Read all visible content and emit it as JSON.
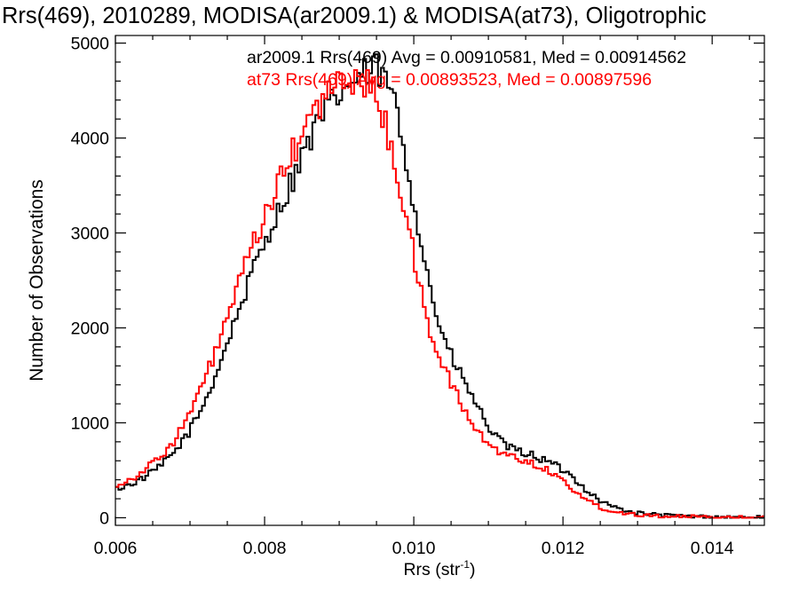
{
  "chart_data": {
    "type": "line",
    "title": "Rrs(469), 2010289, MODISA(ar2009.1) & MODISA(at73), Oligotrophic",
    "xlabel_main": "Rrs (str",
    "xlabel_sup": "-1",
    "xlabel_close": ")",
    "ylabel": "Number of Observations",
    "xlim": [
      0.006,
      0.0147
    ],
    "ylim": [
      -80,
      5080
    ],
    "xticks": [
      0.006,
      0.008,
      0.01,
      0.012,
      0.014
    ],
    "xtick_labels": [
      "0.006",
      "0.008",
      "0.010",
      "0.012",
      "0.014"
    ],
    "yticks": [
      0,
      1000,
      2000,
      3000,
      4000,
      5000
    ],
    "ytick_labels": [
      "0",
      "1000",
      "2000",
      "3000",
      "4000",
      "5000"
    ],
    "grid": false,
    "legend_placement": "top-right",
    "bin_width": 4e-05,
    "series": [
      {
        "name": "ar2009.1",
        "legend_label": "ar2009.1 Rrs(469) Avg = 0.00910581, Med = 0.00914562",
        "color": "#000000",
        "points": [
          [
            0.006,
            300
          ],
          [
            0.0062,
            350
          ],
          [
            0.0064,
            430
          ],
          [
            0.0066,
            540
          ],
          [
            0.0068,
            700
          ],
          [
            0.007,
            920
          ],
          [
            0.0072,
            1220
          ],
          [
            0.0074,
            1620
          ],
          [
            0.0076,
            2070
          ],
          [
            0.0078,
            2500
          ],
          [
            0.008,
            2920
          ],
          [
            0.0082,
            3250
          ],
          [
            0.0084,
            3620
          ],
          [
            0.0086,
            3980
          ],
          [
            0.0088,
            4250
          ],
          [
            0.009,
            4460
          ],
          [
            0.0092,
            4600
          ],
          [
            0.0094,
            4690
          ],
          [
            0.0095,
            4720
          ],
          [
            0.0096,
            4620
          ],
          [
            0.0097,
            4500
          ],
          [
            0.0098,
            4150
          ],
          [
            0.0099,
            3750
          ],
          [
            0.01,
            3350
          ],
          [
            0.0101,
            2900
          ],
          [
            0.0102,
            2500
          ],
          [
            0.0103,
            2150
          ],
          [
            0.0104,
            1900
          ],
          [
            0.0105,
            1700
          ],
          [
            0.0106,
            1550
          ],
          [
            0.0107,
            1400
          ],
          [
            0.0108,
            1250
          ],
          [
            0.0109,
            1100
          ],
          [
            0.011,
            960
          ],
          [
            0.0111,
            850
          ],
          [
            0.0112,
            780
          ],
          [
            0.0113,
            730
          ],
          [
            0.0114,
            700
          ],
          [
            0.0115,
            680
          ],
          [
            0.0116,
            660
          ],
          [
            0.0117,
            620
          ],
          [
            0.0118,
            590
          ],
          [
            0.0119,
            550
          ],
          [
            0.012,
            500
          ],
          [
            0.0121,
            450
          ],
          [
            0.0122,
            380
          ],
          [
            0.0123,
            300
          ],
          [
            0.0124,
            240
          ],
          [
            0.0125,
            180
          ],
          [
            0.0126,
            140
          ],
          [
            0.0127,
            110
          ],
          [
            0.0128,
            85
          ],
          [
            0.0129,
            65
          ],
          [
            0.013,
            50
          ],
          [
            0.0132,
            35
          ],
          [
            0.0134,
            25
          ],
          [
            0.0136,
            18
          ],
          [
            0.0138,
            12
          ],
          [
            0.014,
            8
          ],
          [
            0.0142,
            5
          ],
          [
            0.0145,
            3
          ],
          [
            0.0147,
            2
          ]
        ]
      },
      {
        "name": "at73",
        "legend_label": "at73 Rrs(469) Avg = 0.00893523, Med = 0.00897596",
        "color": "#ff0000",
        "points": [
          [
            0.006,
            340
          ],
          [
            0.0062,
            400
          ],
          [
            0.0064,
            510
          ],
          [
            0.0066,
            640
          ],
          [
            0.0068,
            820
          ],
          [
            0.007,
            1100
          ],
          [
            0.0072,
            1450
          ],
          [
            0.0074,
            1880
          ],
          [
            0.0076,
            2330
          ],
          [
            0.0078,
            2770
          ],
          [
            0.008,
            3170
          ],
          [
            0.0082,
            3530
          ],
          [
            0.0084,
            3880
          ],
          [
            0.0086,
            4180
          ],
          [
            0.0088,
            4430
          ],
          [
            0.009,
            4570
          ],
          [
            0.0092,
            4620
          ],
          [
            0.0093,
            4610
          ],
          [
            0.0094,
            4560
          ],
          [
            0.0095,
            4420
          ],
          [
            0.0096,
            4200
          ],
          [
            0.0097,
            3900
          ],
          [
            0.0098,
            3550
          ],
          [
            0.0099,
            3150
          ],
          [
            0.01,
            2750
          ],
          [
            0.0101,
            2350
          ],
          [
            0.0102,
            2000
          ],
          [
            0.0103,
            1780
          ],
          [
            0.0104,
            1600
          ],
          [
            0.0105,
            1420
          ],
          [
            0.0106,
            1250
          ],
          [
            0.0107,
            1100
          ],
          [
            0.0108,
            970
          ],
          [
            0.0109,
            860
          ],
          [
            0.011,
            780
          ],
          [
            0.0111,
            720
          ],
          [
            0.0112,
            680
          ],
          [
            0.0113,
            650
          ],
          [
            0.0114,
            620
          ],
          [
            0.0115,
            600
          ],
          [
            0.0116,
            570
          ],
          [
            0.0117,
            540
          ],
          [
            0.0118,
            500
          ],
          [
            0.0119,
            450
          ],
          [
            0.012,
            390
          ],
          [
            0.0121,
            320
          ],
          [
            0.0122,
            260
          ],
          [
            0.0123,
            200
          ],
          [
            0.0124,
            150
          ],
          [
            0.0125,
            110
          ],
          [
            0.0126,
            85
          ],
          [
            0.0127,
            65
          ],
          [
            0.0128,
            50
          ],
          [
            0.013,
            35
          ],
          [
            0.0132,
            25
          ],
          [
            0.0134,
            17
          ],
          [
            0.0136,
            12
          ],
          [
            0.0138,
            8
          ],
          [
            0.014,
            5
          ],
          [
            0.0143,
            3
          ],
          [
            0.0147,
            1
          ]
        ]
      }
    ]
  }
}
